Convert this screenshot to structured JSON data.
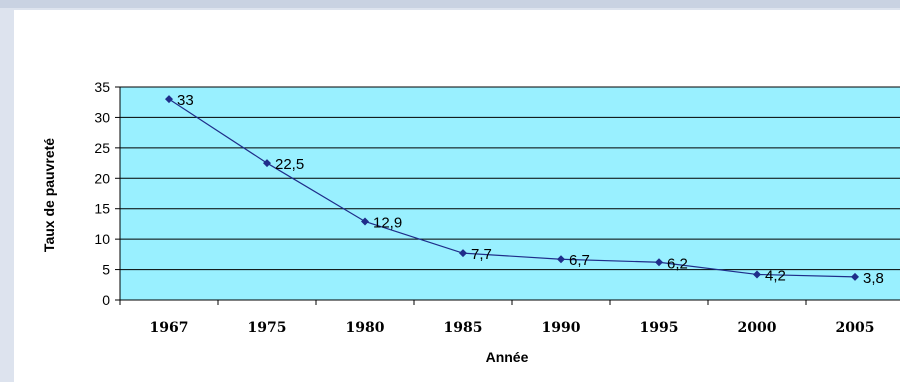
{
  "chart_data": {
    "type": "line",
    "title": "",
    "xlabel": "Année",
    "ylabel": "Taux de pauvreté",
    "categories": [
      "1967",
      "1975",
      "1980",
      "1985",
      "1990",
      "1995",
      "2000",
      "2005"
    ],
    "series": [
      {
        "values": [
          33,
          22.5,
          12.9,
          7.7,
          6.7,
          6.2,
          4.2,
          3.8
        ],
        "labels": [
          "33",
          "22,5",
          "12,9",
          "7,7",
          "6,7",
          "6,2",
          "4,2",
          "3,8"
        ],
        "color": "#1f2d8a"
      }
    ],
    "ylim": [
      0,
      35
    ],
    "yticks": [
      "0",
      "5",
      "10",
      "15",
      "20",
      "25",
      "30",
      "35"
    ],
    "grid": true,
    "plot_background": "#99f0ff"
  }
}
